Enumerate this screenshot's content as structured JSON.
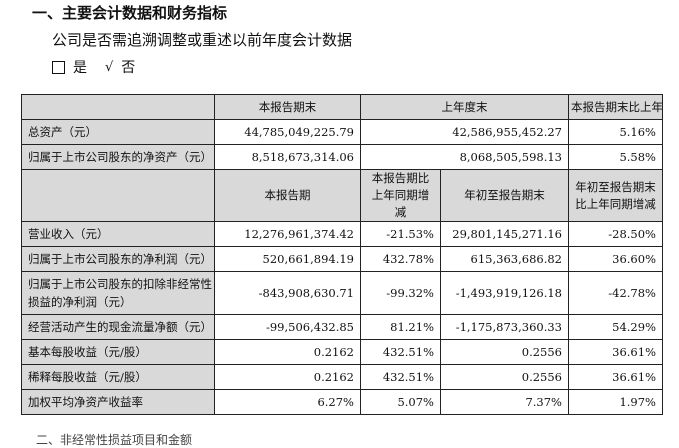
{
  "section_title": "一、主要会计数据和财务指标",
  "question": "公司是否需追溯调整或重述以前年度会计数据",
  "options": {
    "yes": "是",
    "no": "否",
    "selected_mark": "√"
  },
  "table": {
    "header1": [
      "",
      "本报告期末",
      "上年度末",
      "本报告期末比上年度末增减"
    ],
    "rows1": [
      {
        "label": "总资产（元）",
        "values": [
          "44,785,049,225.79",
          "42,586,955,452.27",
          "5.16%"
        ]
      },
      {
        "label": "归属于上市公司股东的净资产（元）",
        "values": [
          "8,518,673,314.06",
          "8,068,505,598.13",
          "5.58%"
        ]
      }
    ],
    "header2": [
      "",
      "本报告期",
      "本报告期比上年同期增减",
      "年初至报告期末",
      "年初至报告期末比上年同期增减"
    ],
    "rows2": [
      {
        "label": "营业收入（元）",
        "values": [
          "12,276,961,374.42",
          "-21.53%",
          "29,801,145,271.16",
          "-28.50%"
        ]
      },
      {
        "label": "归属于上市公司股东的净利润（元）",
        "values": [
          "520,661,894.19",
          "432.78%",
          "615,363,686.82",
          "36.60%"
        ]
      },
      {
        "label": "归属于上市公司股东的扣除非经常性损益的净利润（元）",
        "values": [
          "-843,908,630.71",
          "-99.32%",
          "-1,493,919,126.18",
          "-42.78%"
        ]
      },
      {
        "label": "经营活动产生的现金流量净额（元）",
        "values": [
          "-99,506,432.85",
          "81.21%",
          "-1,175,873,360.33",
          "54.29%"
        ]
      },
      {
        "label": "基本每股收益（元/股）",
        "values": [
          "0.2162",
          "432.51%",
          "0.2556",
          "36.61%"
        ]
      },
      {
        "label": "稀释每股收益（元/股）",
        "values": [
          "0.2162",
          "432.51%",
          "0.2556",
          "36.61%"
        ]
      },
      {
        "label": "加权平均净资产收益率",
        "values": [
          "6.27%",
          "5.07%",
          "7.37%",
          "1.97%"
        ]
      }
    ]
  },
  "footer_fragment": "二、非经常性损益项目和金额"
}
